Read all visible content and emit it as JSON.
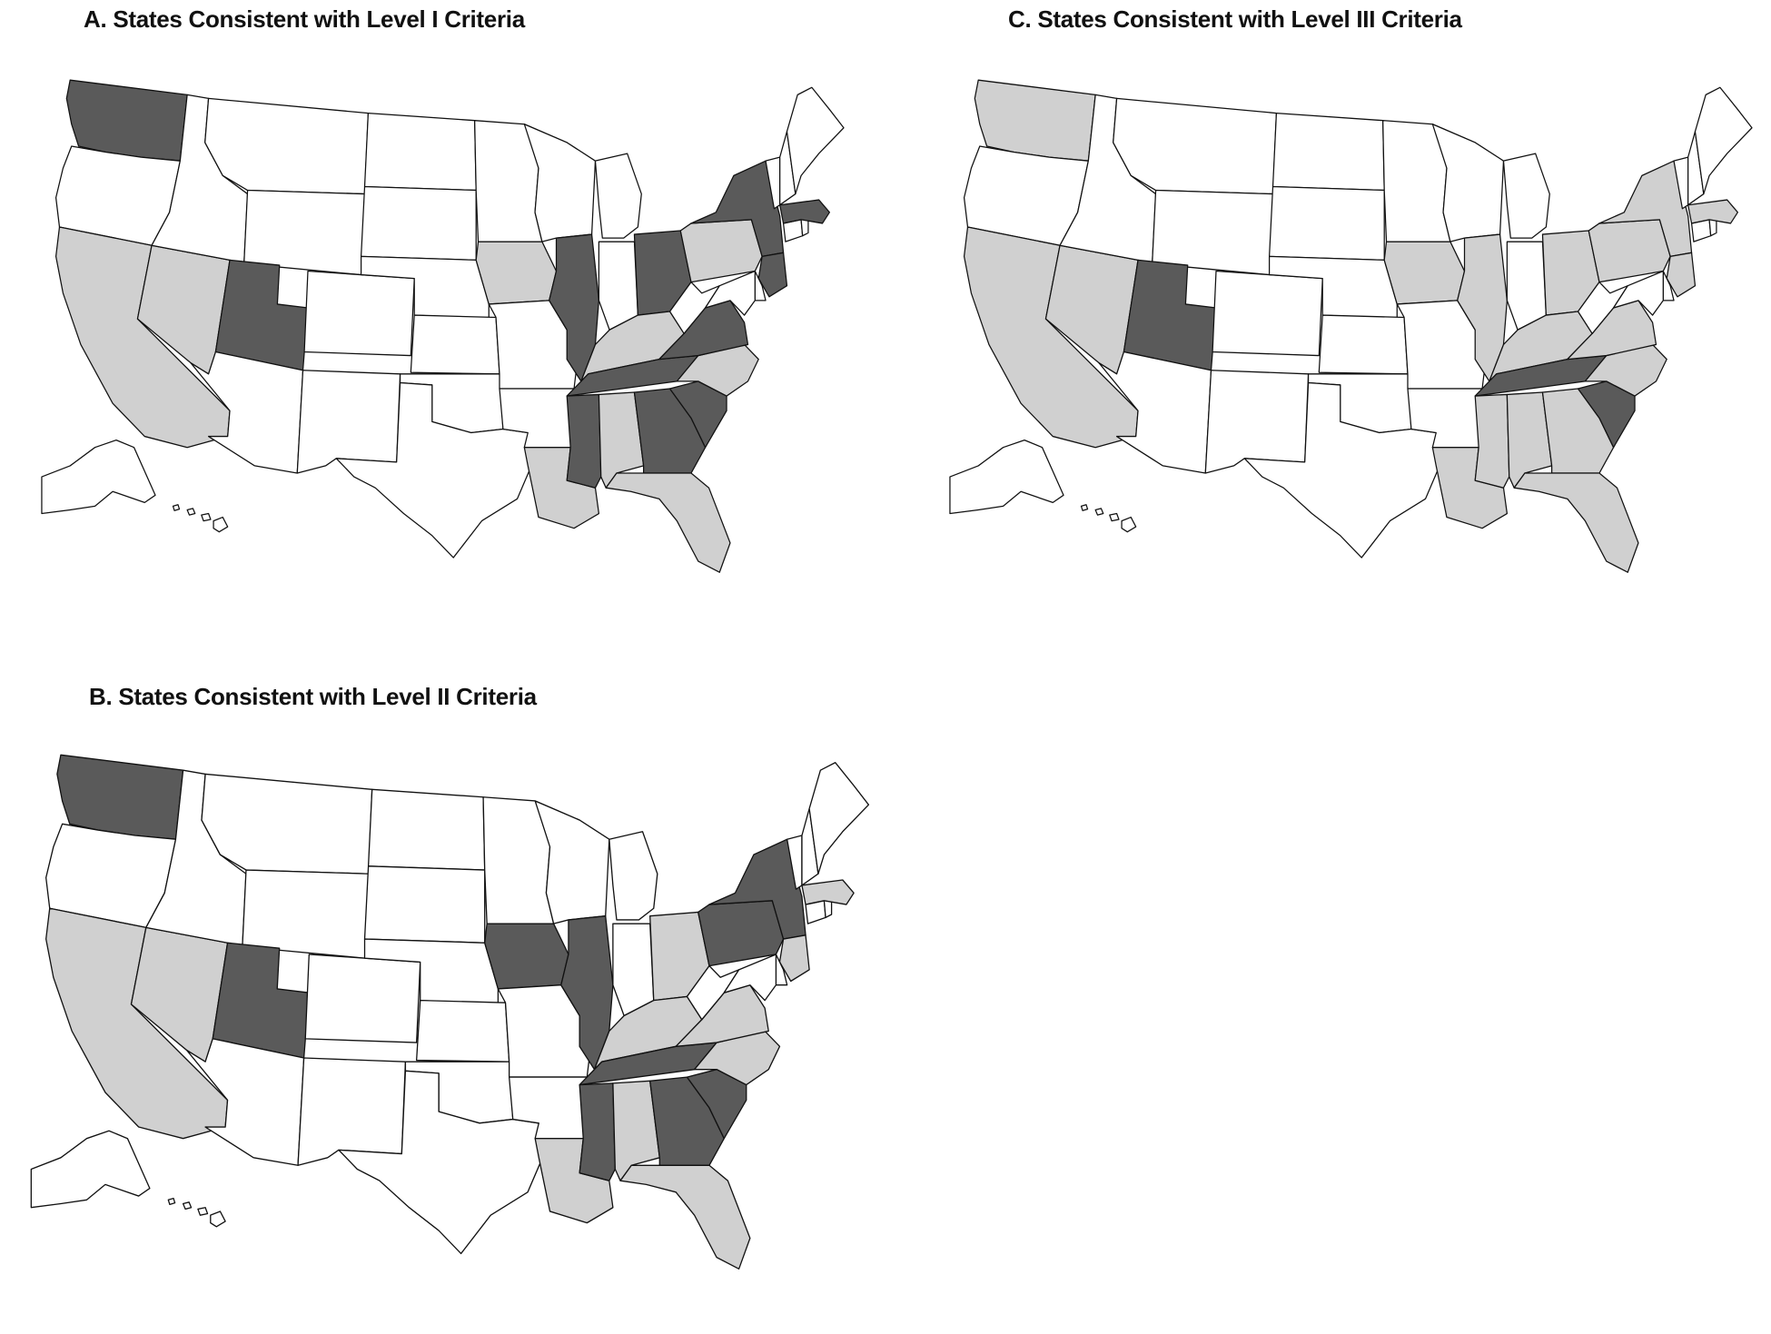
{
  "colors": {
    "dark": "#5a5a5a",
    "light": "#d0d0d0",
    "none": "#ffffff",
    "stroke": "#111111"
  },
  "maps": [
    {
      "id": "A",
      "title": "A. States Consistent with Level I Criteria",
      "dark": [
        "WA",
        "UT",
        "IL",
        "OH",
        "NY",
        "NJ",
        "MA",
        "VA",
        "TN",
        "MS",
        "GA",
        "SC"
      ],
      "light": [
        "CA",
        "NV",
        "IA",
        "PA",
        "NC",
        "AL",
        "LA",
        "FL",
        "KY"
      ]
    },
    {
      "id": "B",
      "title": "B. States Consistent with Level II Criteria",
      "dark": [
        "WA",
        "UT",
        "IA",
        "IL",
        "NY",
        "PA",
        "TN",
        "MS",
        "GA",
        "SC"
      ],
      "light": [
        "CA",
        "NV",
        "OH",
        "NJ",
        "MA",
        "KY",
        "VA",
        "NC",
        "AL",
        "LA",
        "FL"
      ]
    },
    {
      "id": "C",
      "title": "C. States Consistent with Level III Criteria",
      "dark": [
        "UT",
        "TN",
        "SC"
      ],
      "light": [
        "WA",
        "CA",
        "NV",
        "IA",
        "IL",
        "OH",
        "NY",
        "PA",
        "NJ",
        "MA",
        "KY",
        "VA",
        "NC",
        "MS",
        "AL",
        "GA",
        "LA",
        "FL"
      ]
    }
  ]
}
